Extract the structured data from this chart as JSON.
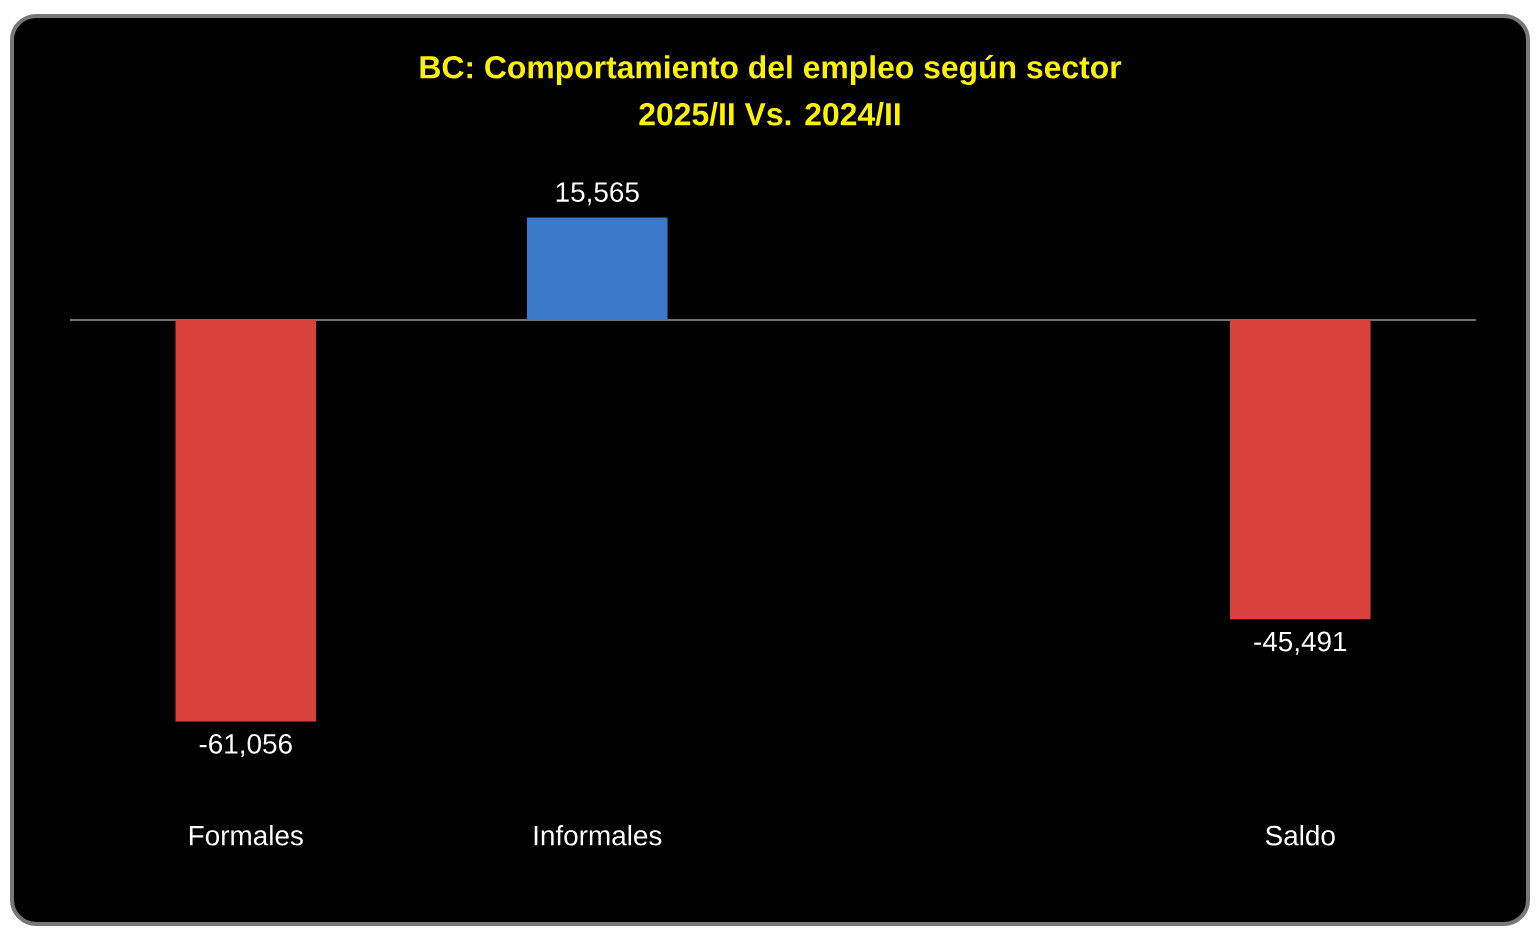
{
  "chart_data": {
    "type": "bar",
    "title": "BC: Comportamiento del empleo según sector",
    "subtitle": "2025/II Vs. 2024/II",
    "categories": [
      "Formales",
      "Informales",
      null,
      "Saldo"
    ],
    "values": [
      -61056,
      15565,
      null,
      -45491
    ],
    "value_labels": [
      "-61,056",
      "15,565",
      null,
      "-45,491"
    ],
    "colors": [
      "#d9413c",
      "#3b78c8",
      null,
      "#d9413c"
    ]
  }
}
